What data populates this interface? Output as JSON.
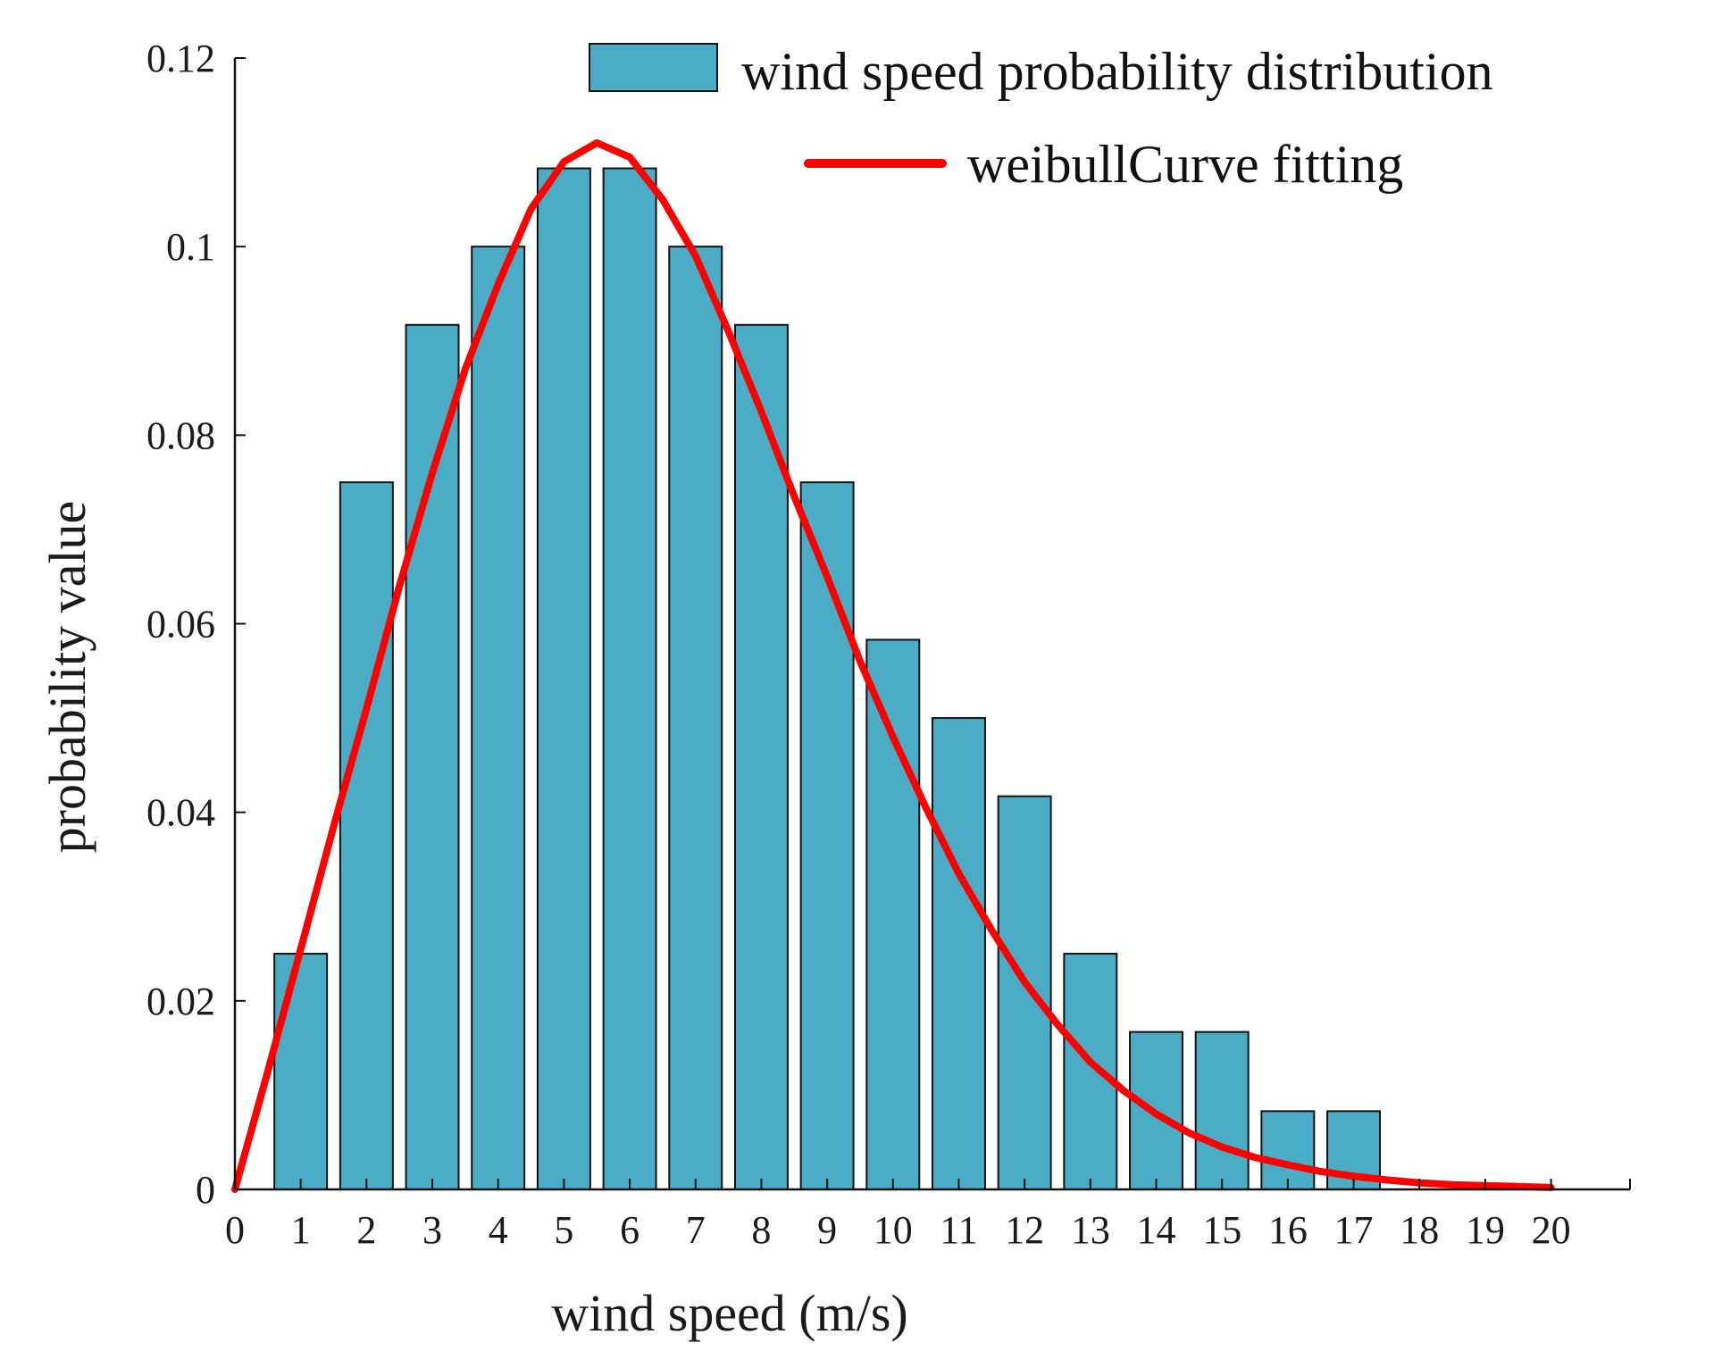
{
  "chart_data": {
    "type": "bar",
    "title": "",
    "xlabel": "wind speed (m/s)",
    "ylabel": "probability value",
    "categories": [
      "1",
      "2",
      "3",
      "4",
      "5",
      "6",
      "7",
      "8",
      "9",
      "10",
      "11",
      "12",
      "13",
      "14",
      "15",
      "16",
      "17",
      "18",
      "19",
      "20"
    ],
    "x_ticks": [
      "0",
      "1",
      "2",
      "3",
      "4",
      "5",
      "6",
      "7",
      "8",
      "9",
      "10",
      "11",
      "12",
      "13",
      "14",
      "15",
      "16",
      "17",
      "18",
      "19",
      "20"
    ],
    "y_ticks": [
      "0",
      "0.02",
      "0.04",
      "0.06",
      "0.08",
      "0.1",
      "0.12"
    ],
    "xlim": [
      0,
      21.2
    ],
    "ylim": [
      0,
      0.12
    ],
    "grid": false,
    "legend_position": "top-right",
    "series": [
      {
        "name": "wind speed probability distribution",
        "kind": "bar",
        "color": "#4bacc6",
        "values": [
          0.025,
          0.075,
          0.0917,
          0.1,
          0.1083,
          0.1083,
          0.1,
          0.0917,
          0.075,
          0.0583,
          0.05,
          0.0417,
          0.025,
          0.0167,
          0.0167,
          0.0083,
          0.0083,
          0,
          0,
          0
        ]
      },
      {
        "name": "weibullCurve fitting",
        "kind": "line",
        "color": "#ff0000",
        "x": [
          0,
          0.5,
          1,
          1.5,
          2,
          2.5,
          3,
          3.5,
          4,
          4.5,
          5,
          5.5,
          6,
          6.5,
          7,
          7.5,
          8,
          8.5,
          9,
          9.5,
          10,
          10.5,
          11,
          11.5,
          12,
          12.5,
          13,
          13.5,
          14,
          14.5,
          15,
          15.5,
          16,
          16.5,
          17,
          17.5,
          18,
          18.5,
          19,
          19.5,
          20
        ],
        "y": [
          0,
          0.0125,
          0.0255,
          0.0385,
          0.051,
          0.064,
          0.076,
          0.087,
          0.096,
          0.104,
          0.109,
          0.111,
          0.1095,
          0.105,
          0.099,
          0.091,
          0.0825,
          0.0735,
          0.065,
          0.056,
          0.048,
          0.0405,
          0.0335,
          0.0275,
          0.022,
          0.0175,
          0.0135,
          0.0105,
          0.008,
          0.006,
          0.0045,
          0.0034,
          0.0026,
          0.0019,
          0.0014,
          0.001,
          0.0007,
          0.0005,
          0.0004,
          0.0003,
          0.0002
        ]
      }
    ]
  }
}
